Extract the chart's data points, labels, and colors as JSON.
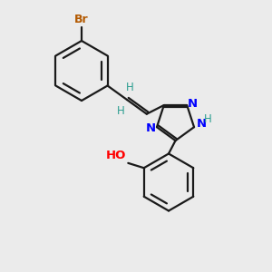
{
  "bg_color": "#ebebeb",
  "bond_color": "#1a1a1a",
  "n_color": "#0000ff",
  "o_color": "#ff0000",
  "br_color": "#b35900",
  "h_color": "#2a9d8f",
  "figsize": [
    3.0,
    3.0
  ],
  "dpi": 100,
  "xlim": [
    0,
    10
  ],
  "ylim": [
    0,
    10
  ]
}
